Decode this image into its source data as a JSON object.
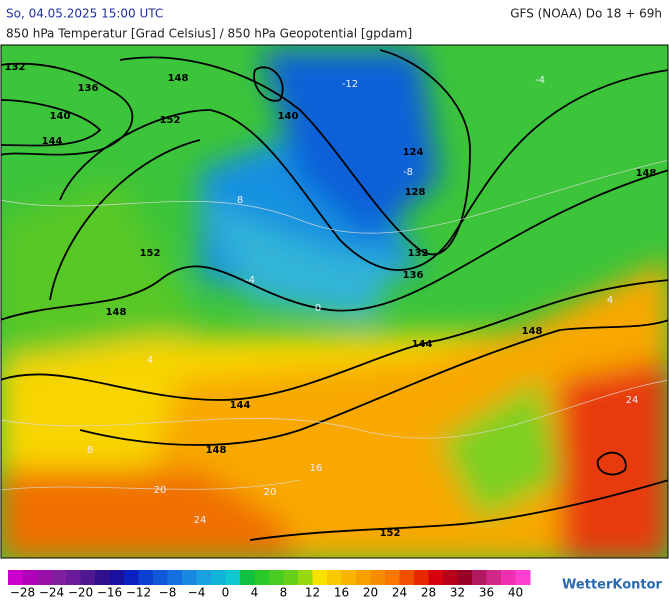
{
  "header": {
    "left": "So, 04.05.2025 15:00 UTC",
    "right": "GFS (NOAA) Do 18 + 69h",
    "subtitle": "850 hPa Temperatur [Grad Celsius] / 850 hPa Geopotential [gpdam]"
  },
  "contour_labels": [
    "132",
    "136",
    "140",
    "148",
    "152",
    "144",
    "140",
    "124",
    "128",
    "132",
    "136",
    "148",
    "152",
    "148",
    "148",
    "144",
    "144",
    "148",
    "152"
  ],
  "isotherm_labels": [
    "-12",
    "-8",
    "-4",
    "-4",
    "0",
    "4",
    "4",
    "8",
    "8",
    "16",
    "20",
    "20",
    "24",
    "24"
  ],
  "colorbar": {
    "colors": [
      "#cc00cc",
      "#b000b8",
      "#9a10a8",
      "#8020a0",
      "#6a1a9a",
      "#501890",
      "#30108c",
      "#1a10a0",
      "#0a20c0",
      "#0c40d0",
      "#1058d8",
      "#1470e0",
      "#1888e0",
      "#18a0e0",
      "#10b4d8",
      "#10c8d0",
      "#10c040",
      "#28c828",
      "#48cc20",
      "#68d018",
      "#98d810",
      "#f8e000",
      "#f8c800",
      "#f8b400",
      "#f8a000",
      "#f88c00",
      "#f87800",
      "#f05000",
      "#e82800",
      "#d80010",
      "#b80018",
      "#980028",
      "#b01860",
      "#d02888",
      "#f030b0",
      "#ff40d0"
    ],
    "ticks": [
      {
        "value": -28,
        "label": "−28"
      },
      {
        "value": -24,
        "label": "−24"
      },
      {
        "value": -20,
        "label": "−20"
      },
      {
        "value": -16,
        "label": "−16"
      },
      {
        "value": -12,
        "label": "−12"
      },
      {
        "value": -8,
        "label": "−8"
      },
      {
        "value": -4,
        "label": "−4"
      },
      0,
      4,
      8,
      12,
      16,
      20,
      24,
      28,
      32,
      36,
      40
    ]
  },
  "logo": "WetterKontor"
}
